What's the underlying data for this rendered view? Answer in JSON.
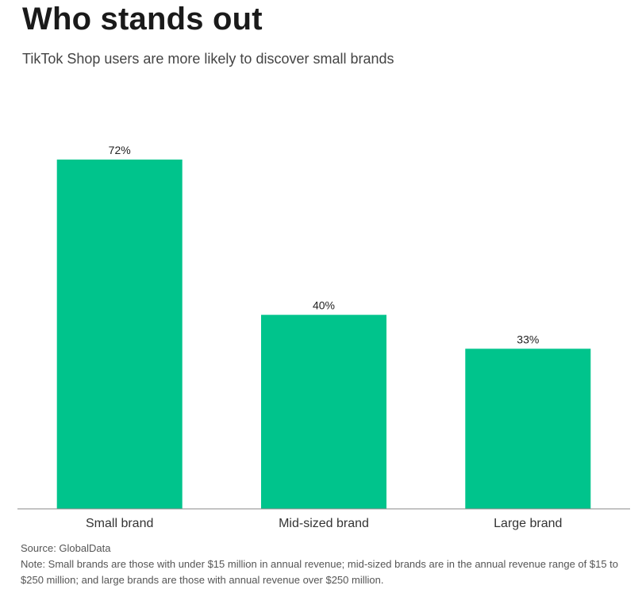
{
  "header": {
    "title": "Who stands out",
    "subtitle": "TikTok Shop users are more likely to discover small brands"
  },
  "footer": {
    "source": "Source: GlobalData",
    "note": "Note: Small brands are those with under $15 million in annual revenue; mid-sized brands are in the annual revenue range of $15 to $250 million; and large brands are those with  annual revenue over $250 million."
  },
  "colors": {
    "bar": "#00c48c",
    "axis": "#888888",
    "text": "#222222"
  },
  "chart_data": {
    "type": "bar",
    "title": "Who stands out",
    "subtitle": "TikTok Shop users are more likely to discover small brands",
    "categories": [
      "Small brand",
      "Mid-sized brand",
      "Large brand"
    ],
    "values": [
      72,
      40,
      33
    ],
    "value_labels": [
      "72%",
      "40%",
      "33%"
    ],
    "unit": "%",
    "xlabel": "",
    "ylabel": "",
    "ylim": [
      0,
      72
    ],
    "grid": false,
    "legend": "none"
  }
}
